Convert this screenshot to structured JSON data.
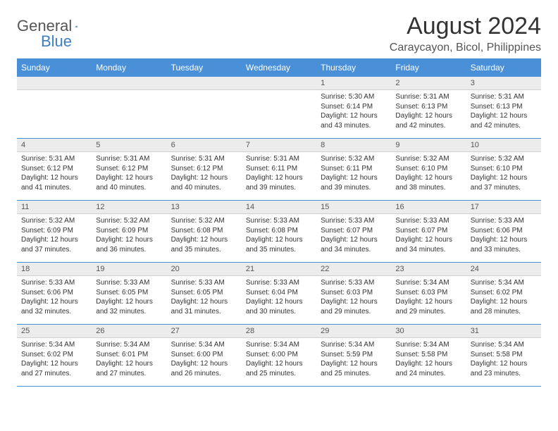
{
  "brand": {
    "part1": "General",
    "part2": "Blue"
  },
  "title": "August 2024",
  "location": "Caraycayon, Bicol, Philippines",
  "colors": {
    "header_bg": "#4a90d9",
    "header_text": "#ffffff",
    "daynum_bg": "#ececec",
    "border": "#4a90d9",
    "body_text": "#333333",
    "brand_accent": "#3a7fc4"
  },
  "day_headers": [
    "Sunday",
    "Monday",
    "Tuesday",
    "Wednesday",
    "Thursday",
    "Friday",
    "Saturday"
  ],
  "weeks": [
    [
      {
        "num": "",
        "sunrise": "",
        "sunset": "",
        "daylight": ""
      },
      {
        "num": "",
        "sunrise": "",
        "sunset": "",
        "daylight": ""
      },
      {
        "num": "",
        "sunrise": "",
        "sunset": "",
        "daylight": ""
      },
      {
        "num": "",
        "sunrise": "",
        "sunset": "",
        "daylight": ""
      },
      {
        "num": "1",
        "sunrise": "Sunrise: 5:30 AM",
        "sunset": "Sunset: 6:14 PM",
        "daylight": "Daylight: 12 hours and 43 minutes."
      },
      {
        "num": "2",
        "sunrise": "Sunrise: 5:31 AM",
        "sunset": "Sunset: 6:13 PM",
        "daylight": "Daylight: 12 hours and 42 minutes."
      },
      {
        "num": "3",
        "sunrise": "Sunrise: 5:31 AM",
        "sunset": "Sunset: 6:13 PM",
        "daylight": "Daylight: 12 hours and 42 minutes."
      }
    ],
    [
      {
        "num": "4",
        "sunrise": "Sunrise: 5:31 AM",
        "sunset": "Sunset: 6:12 PM",
        "daylight": "Daylight: 12 hours and 41 minutes."
      },
      {
        "num": "5",
        "sunrise": "Sunrise: 5:31 AM",
        "sunset": "Sunset: 6:12 PM",
        "daylight": "Daylight: 12 hours and 40 minutes."
      },
      {
        "num": "6",
        "sunrise": "Sunrise: 5:31 AM",
        "sunset": "Sunset: 6:12 PM",
        "daylight": "Daylight: 12 hours and 40 minutes."
      },
      {
        "num": "7",
        "sunrise": "Sunrise: 5:31 AM",
        "sunset": "Sunset: 6:11 PM",
        "daylight": "Daylight: 12 hours and 39 minutes."
      },
      {
        "num": "8",
        "sunrise": "Sunrise: 5:32 AM",
        "sunset": "Sunset: 6:11 PM",
        "daylight": "Daylight: 12 hours and 39 minutes."
      },
      {
        "num": "9",
        "sunrise": "Sunrise: 5:32 AM",
        "sunset": "Sunset: 6:10 PM",
        "daylight": "Daylight: 12 hours and 38 minutes."
      },
      {
        "num": "10",
        "sunrise": "Sunrise: 5:32 AM",
        "sunset": "Sunset: 6:10 PM",
        "daylight": "Daylight: 12 hours and 37 minutes."
      }
    ],
    [
      {
        "num": "11",
        "sunrise": "Sunrise: 5:32 AM",
        "sunset": "Sunset: 6:09 PM",
        "daylight": "Daylight: 12 hours and 37 minutes."
      },
      {
        "num": "12",
        "sunrise": "Sunrise: 5:32 AM",
        "sunset": "Sunset: 6:09 PM",
        "daylight": "Daylight: 12 hours and 36 minutes."
      },
      {
        "num": "13",
        "sunrise": "Sunrise: 5:32 AM",
        "sunset": "Sunset: 6:08 PM",
        "daylight": "Daylight: 12 hours and 35 minutes."
      },
      {
        "num": "14",
        "sunrise": "Sunrise: 5:33 AM",
        "sunset": "Sunset: 6:08 PM",
        "daylight": "Daylight: 12 hours and 35 minutes."
      },
      {
        "num": "15",
        "sunrise": "Sunrise: 5:33 AM",
        "sunset": "Sunset: 6:07 PM",
        "daylight": "Daylight: 12 hours and 34 minutes."
      },
      {
        "num": "16",
        "sunrise": "Sunrise: 5:33 AM",
        "sunset": "Sunset: 6:07 PM",
        "daylight": "Daylight: 12 hours and 34 minutes."
      },
      {
        "num": "17",
        "sunrise": "Sunrise: 5:33 AM",
        "sunset": "Sunset: 6:06 PM",
        "daylight": "Daylight: 12 hours and 33 minutes."
      }
    ],
    [
      {
        "num": "18",
        "sunrise": "Sunrise: 5:33 AM",
        "sunset": "Sunset: 6:06 PM",
        "daylight": "Daylight: 12 hours and 32 minutes."
      },
      {
        "num": "19",
        "sunrise": "Sunrise: 5:33 AM",
        "sunset": "Sunset: 6:05 PM",
        "daylight": "Daylight: 12 hours and 32 minutes."
      },
      {
        "num": "20",
        "sunrise": "Sunrise: 5:33 AM",
        "sunset": "Sunset: 6:05 PM",
        "daylight": "Daylight: 12 hours and 31 minutes."
      },
      {
        "num": "21",
        "sunrise": "Sunrise: 5:33 AM",
        "sunset": "Sunset: 6:04 PM",
        "daylight": "Daylight: 12 hours and 30 minutes."
      },
      {
        "num": "22",
        "sunrise": "Sunrise: 5:33 AM",
        "sunset": "Sunset: 6:03 PM",
        "daylight": "Daylight: 12 hours and 29 minutes."
      },
      {
        "num": "23",
        "sunrise": "Sunrise: 5:34 AM",
        "sunset": "Sunset: 6:03 PM",
        "daylight": "Daylight: 12 hours and 29 minutes."
      },
      {
        "num": "24",
        "sunrise": "Sunrise: 5:34 AM",
        "sunset": "Sunset: 6:02 PM",
        "daylight": "Daylight: 12 hours and 28 minutes."
      }
    ],
    [
      {
        "num": "25",
        "sunrise": "Sunrise: 5:34 AM",
        "sunset": "Sunset: 6:02 PM",
        "daylight": "Daylight: 12 hours and 27 minutes."
      },
      {
        "num": "26",
        "sunrise": "Sunrise: 5:34 AM",
        "sunset": "Sunset: 6:01 PM",
        "daylight": "Daylight: 12 hours and 27 minutes."
      },
      {
        "num": "27",
        "sunrise": "Sunrise: 5:34 AM",
        "sunset": "Sunset: 6:00 PM",
        "daylight": "Daylight: 12 hours and 26 minutes."
      },
      {
        "num": "28",
        "sunrise": "Sunrise: 5:34 AM",
        "sunset": "Sunset: 6:00 PM",
        "daylight": "Daylight: 12 hours and 25 minutes."
      },
      {
        "num": "29",
        "sunrise": "Sunrise: 5:34 AM",
        "sunset": "Sunset: 5:59 PM",
        "daylight": "Daylight: 12 hours and 25 minutes."
      },
      {
        "num": "30",
        "sunrise": "Sunrise: 5:34 AM",
        "sunset": "Sunset: 5:58 PM",
        "daylight": "Daylight: 12 hours and 24 minutes."
      },
      {
        "num": "31",
        "sunrise": "Sunrise: 5:34 AM",
        "sunset": "Sunset: 5:58 PM",
        "daylight": "Daylight: 12 hours and 23 minutes."
      }
    ]
  ]
}
